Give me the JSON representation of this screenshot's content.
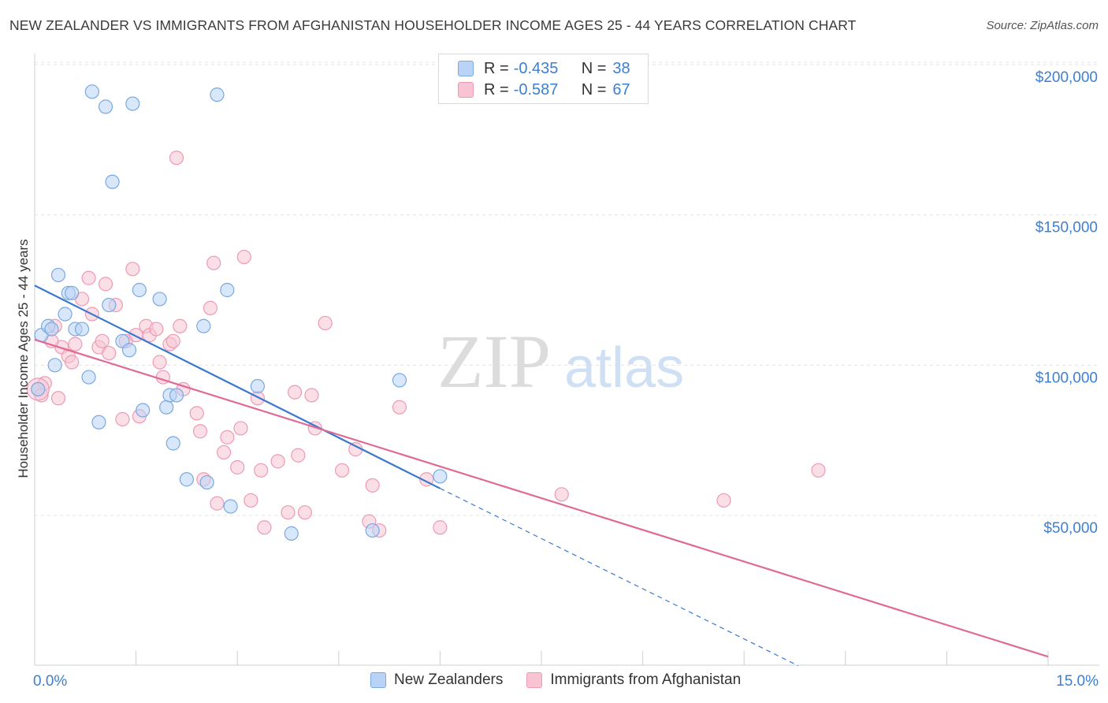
{
  "header": {
    "title": "NEW ZEALANDER VS IMMIGRANTS FROM AFGHANISTAN HOUSEHOLDER INCOME AGES 25 - 44 YEARS CORRELATION CHART",
    "source": "Source: ZipAtlas.com"
  },
  "watermark": {
    "zip": "ZIP",
    "atlas": "atlas"
  },
  "legend": {
    "rows": [
      {
        "r_label": "R =",
        "r_value": "-0.435",
        "n_label": "N =",
        "n_value": "38"
      },
      {
        "r_label": "R =",
        "r_value": "-0.587",
        "n_label": "N =",
        "n_value": "67"
      }
    ]
  },
  "colors": {
    "blue_fill": "#b8d3f5",
    "blue_stroke": "#7aa8e0",
    "blue_line": "#3a78d0",
    "pink_fill": "#f8c4d4",
    "pink_stroke": "#ee9ab4",
    "pink_line": "#e06a96",
    "tick_text": "#3d7fd0",
    "grid": "#e4e4e4"
  },
  "chart_data": {
    "type": "scatter",
    "title": "NEW ZEALANDER VS IMMIGRANTS FROM AFGHANISTAN HOUSEHOLDER INCOME AGES 25 - 44 YEARS CORRELATION CHART",
    "xlabel": "",
    "ylabel": "Householder Income Ages 25 - 44 years",
    "xlim": [
      0,
      15
    ],
    "ylim": [
      0,
      205000
    ],
    "x_tick_labels": [
      "0.0%",
      "15.0%"
    ],
    "y_ticks": [
      50000,
      100000,
      150000,
      200000
    ],
    "y_tick_labels": [
      "$50,000",
      "$100,000",
      "$150,000",
      "$200,000"
    ],
    "grid": true,
    "legend_position": "top-center",
    "series": [
      {
        "name": "New Zealanders",
        "r": -0.435,
        "n": 38,
        "trend": {
          "x": [
            0,
            6.0
          ],
          "y": [
            126500,
            59000
          ],
          "dashed_to": [
            11.3,
            0
          ]
        },
        "points": [
          [
            0.05,
            92000
          ],
          [
            0.1,
            110000
          ],
          [
            0.2,
            113000
          ],
          [
            0.25,
            112000
          ],
          [
            0.3,
            100000
          ],
          [
            0.35,
            130000
          ],
          [
            0.45,
            117000
          ],
          [
            0.5,
            124000
          ],
          [
            0.55,
            124000
          ],
          [
            0.6,
            112000
          ],
          [
            0.7,
            112000
          ],
          [
            0.8,
            96000
          ],
          [
            0.85,
            191000
          ],
          [
            0.95,
            81000
          ],
          [
            1.05,
            186000
          ],
          [
            1.1,
            120000
          ],
          [
            1.15,
            161000
          ],
          [
            1.3,
            108000
          ],
          [
            1.4,
            105000
          ],
          [
            1.45,
            187000
          ],
          [
            1.55,
            125000
          ],
          [
            1.6,
            85000
          ],
          [
            1.85,
            122000
          ],
          [
            1.95,
            86000
          ],
          [
            2.0,
            90000
          ],
          [
            2.05,
            74000
          ],
          [
            2.1,
            90000
          ],
          [
            2.25,
            62000
          ],
          [
            2.5,
            113000
          ],
          [
            2.55,
            61000
          ],
          [
            2.7,
            190000
          ],
          [
            2.85,
            125000
          ],
          [
            2.9,
            53000
          ],
          [
            3.3,
            93000
          ],
          [
            3.8,
            44000
          ],
          [
            5.0,
            45000
          ],
          [
            5.4,
            95000
          ],
          [
            6.0,
            63000
          ]
        ]
      },
      {
        "name": "Immigrants from Afghanistan",
        "r": -0.587,
        "n": 67,
        "trend": {
          "x": [
            0,
            15.0
          ],
          "y": [
            108500,
            3000
          ]
        },
        "points": [
          [
            0.05,
            92000
          ],
          [
            0.1,
            90000
          ],
          [
            0.15,
            94000
          ],
          [
            0.3,
            113000
          ],
          [
            0.35,
            89000
          ],
          [
            0.4,
            106000
          ],
          [
            0.5,
            103000
          ],
          [
            0.55,
            101000
          ],
          [
            0.6,
            107000
          ],
          [
            0.7,
            122000
          ],
          [
            0.8,
            129000
          ],
          [
            0.85,
            117000
          ],
          [
            0.95,
            106000
          ],
          [
            1.0,
            108000
          ],
          [
            1.05,
            127000
          ],
          [
            1.1,
            104000
          ],
          [
            1.2,
            120000
          ],
          [
            1.3,
            82000
          ],
          [
            1.35,
            108000
          ],
          [
            1.45,
            132000
          ],
          [
            1.5,
            110000
          ],
          [
            1.55,
            83000
          ],
          [
            1.65,
            113000
          ],
          [
            1.7,
            110000
          ],
          [
            1.8,
            112000
          ],
          [
            1.85,
            101000
          ],
          [
            1.9,
            96000
          ],
          [
            2.0,
            107000
          ],
          [
            2.05,
            108000
          ],
          [
            2.1,
            169000
          ],
          [
            2.15,
            113000
          ],
          [
            2.2,
            92000
          ],
          [
            2.4,
            84000
          ],
          [
            2.45,
            78000
          ],
          [
            2.5,
            62000
          ],
          [
            2.6,
            119000
          ],
          [
            2.65,
            134000
          ],
          [
            2.7,
            54000
          ],
          [
            2.8,
            71000
          ],
          [
            2.85,
            76000
          ],
          [
            3.0,
            66000
          ],
          [
            3.05,
            79000
          ],
          [
            3.1,
            136000
          ],
          [
            3.2,
            55000
          ],
          [
            3.3,
            89000
          ],
          [
            3.35,
            65000
          ],
          [
            3.4,
            46000
          ],
          [
            3.6,
            68000
          ],
          [
            3.75,
            51000
          ],
          [
            3.85,
            91000
          ],
          [
            3.9,
            70000
          ],
          [
            4.0,
            51000
          ],
          [
            4.1,
            90000
          ],
          [
            4.15,
            79000
          ],
          [
            4.3,
            114000
          ],
          [
            4.55,
            65000
          ],
          [
            4.75,
            72000
          ],
          [
            4.95,
            48000
          ],
          [
            5.0,
            60000
          ],
          [
            5.1,
            45000
          ],
          [
            5.4,
            86000
          ],
          [
            5.8,
            62000
          ],
          [
            6.0,
            46000
          ],
          [
            7.8,
            57000
          ],
          [
            10.2,
            55000
          ],
          [
            11.6,
            65000
          ],
          [
            0.25,
            108000
          ]
        ]
      }
    ]
  },
  "bottom_legend": {
    "items": [
      {
        "label": "New Zealanders"
      },
      {
        "label": "Immigrants from Afghanistan"
      }
    ]
  }
}
